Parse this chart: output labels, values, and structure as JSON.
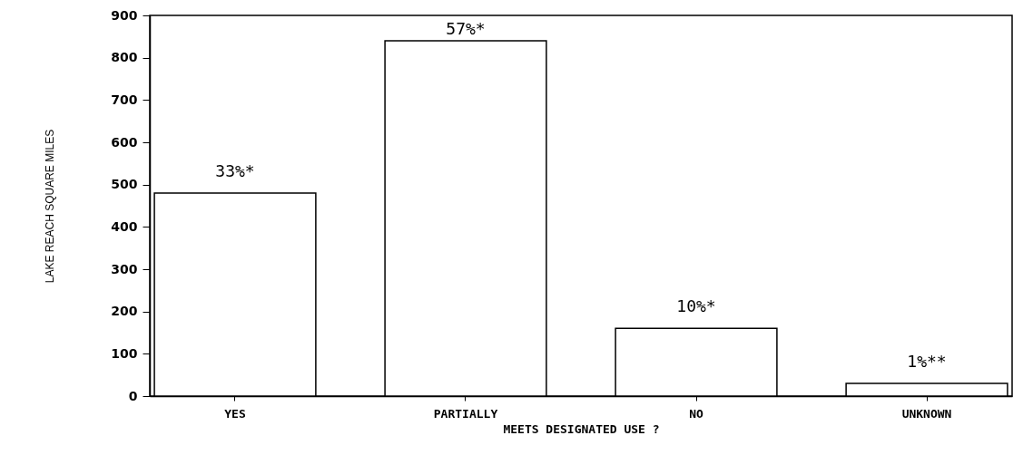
{
  "chart_data": {
    "type": "bar",
    "xlabel": "MEETS DESIGNATED USE ?",
    "ylabel": "LAKE REACH SQUARE MILES",
    "categories": [
      "YES",
      "PARTIALLY",
      "NO",
      "UNKNOWN"
    ],
    "values": [
      480,
      840,
      160,
      30
    ],
    "annotations": [
      {
        "text": "33%*",
        "x": "YES",
        "y": 480
      },
      {
        "text": "57%*",
        "x": "PARTIALLY",
        "y": 840
      },
      {
        "text": "10%*",
        "x": "NO",
        "y": 160
      },
      {
        "text": "1%**",
        "x": "UNKNOWN",
        "y": 30
      }
    ],
    "color": "#ffffff",
    "ylim": [
      0,
      900
    ],
    "yticks": [
      0,
      100,
      200,
      300,
      400,
      500,
      600,
      700,
      800,
      900
    ],
    "grid": false
  }
}
